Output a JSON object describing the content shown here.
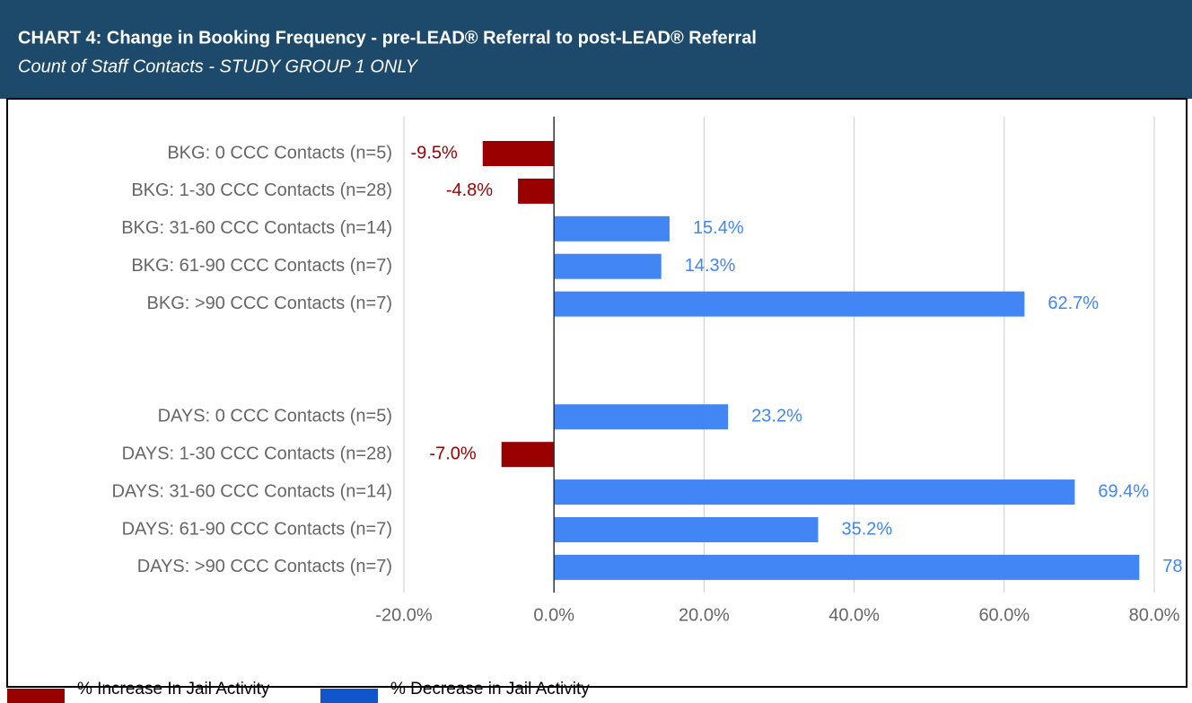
{
  "chart_data": {
    "type": "hbar",
    "title": "CHART 4: Change in Booking Frequency - pre-LEAD® Referral to post-LEAD® Referral",
    "subtitle": "Count of Staff Contacts - STUDY GROUP 1 ONLY",
    "categories": [
      "BKG: 0 CCC Contacts (n=5)",
      "BKG: 1-30 CCC Contacts (n=28)",
      "BKG: 31-60 CCC Contacts (n=14)",
      "BKG: 61-90 CCC Contacts (n=7)",
      "BKG: >90 CCC Contacts (n=7)",
      null,
      null,
      "DAYS: 0 CCC Contacts (n=5)",
      "DAYS: 1-30 CCC Contacts (n=28)",
      "DAYS: 31-60 CCC Contacts (n=14)",
      "DAYS: 61-90 CCC Contacts (n=7)",
      "DAYS: >90 CCC Contacts (n=7)"
    ],
    "values": [
      -9.5,
      -4.8,
      15.4,
      14.3,
      62.7,
      null,
      null,
      23.2,
      -7.0,
      69.4,
      35.2,
      78
    ],
    "value_labels": [
      "-9.5%",
      "-4.8%",
      "15.4%",
      "14.3%",
      "62.7%",
      null,
      null,
      "23.2%",
      "-7.0%",
      "69.4%",
      "35.2%",
      "78"
    ],
    "color_negative": "#990000",
    "color_positive": "#4285f4",
    "xlim": [
      -20,
      80
    ],
    "xticks": [
      {
        "value": -20,
        "label": "-20.0%"
      },
      {
        "value": 0,
        "label": "0.0%"
      },
      {
        "value": 20,
        "label": "20.0%"
      },
      {
        "value": 40,
        "label": "40.0%"
      },
      {
        "value": 60,
        "label": "60.0%"
      },
      {
        "value": 80,
        "label": "80.0%"
      }
    ],
    "grid": true,
    "legend": [
      {
        "label": "% Increase In Jail Activity",
        "color": "#990000"
      },
      {
        "label": "% Decrease in Jail Activity",
        "color": "#1155cc"
      }
    ]
  }
}
